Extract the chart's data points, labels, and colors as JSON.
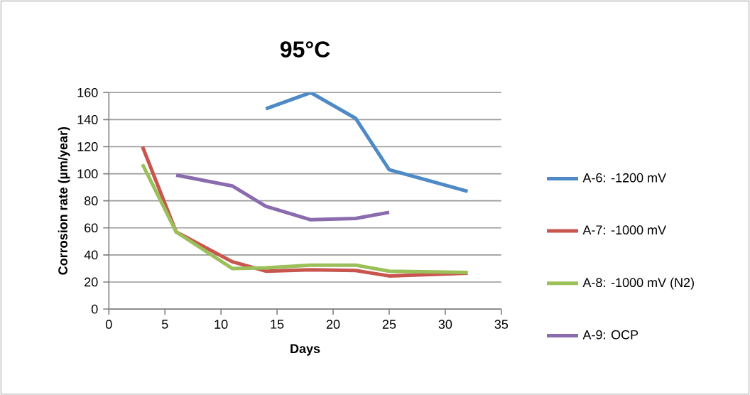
{
  "chart_data": {
    "type": "line",
    "title": "95°C",
    "xlabel": "Days",
    "ylabel": "Corrosion rate (µm/year)",
    "x": [
      3,
      6,
      11,
      14,
      18,
      22,
      25,
      32
    ],
    "series": [
      {
        "name": "A-6: -1200 mV",
        "color": "#4f8ac6",
        "values": [
          null,
          null,
          null,
          148,
          160,
          141,
          103,
          87
        ]
      },
      {
        "name": "A-7: -1000 mV",
        "color": "#c9554f",
        "values": [
          120,
          57,
          35,
          28,
          29,
          28.5,
          24.5,
          26.5
        ]
      },
      {
        "name": "A-8: -1000 mV (N2)",
        "color": "#9bc05a",
        "values": [
          107,
          57,
          30,
          30.5,
          32.5,
          32.5,
          28,
          27
        ]
      },
      {
        "name": "A-9: OCP",
        "color": "#8a6cae",
        "values": [
          null,
          99,
          91,
          76,
          66,
          67,
          71.5,
          null
        ]
      }
    ],
    "xlim": [
      0,
      35
    ],
    "xticks": [
      0,
      5,
      10,
      15,
      20,
      25,
      30,
      35
    ],
    "ylim": [
      0,
      160
    ],
    "yticks": [
      0,
      20,
      40,
      60,
      80,
      100,
      120,
      140,
      160
    ],
    "grid": "y",
    "legend": "right",
    "marker": "none",
    "line_style": "solid"
  }
}
